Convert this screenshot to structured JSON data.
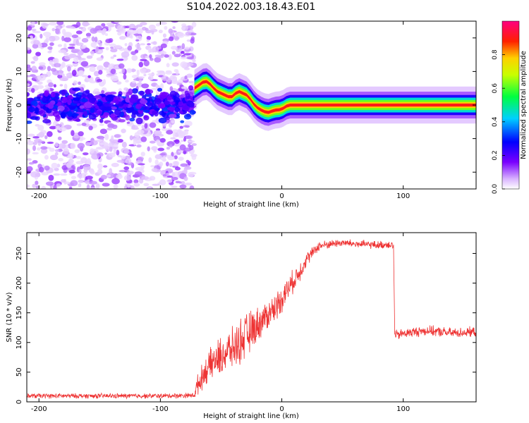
{
  "title": "S104.2022.003.18.43.E01",
  "chart_data": [
    {
      "type": "heatmap",
      "xlabel": "Height of straight line (km)",
      "ylabel": "Frequency (Hz)",
      "xlim": [
        -210,
        160
      ],
      "ylim": [
        -25,
        25
      ],
      "xticks": [
        -200,
        -100,
        0,
        100
      ],
      "xtick_labels": [
        "-200",
        "-100",
        "0",
        "100"
      ],
      "yticks": [
        -20,
        -10,
        0,
        10,
        20
      ],
      "ytick_labels": [
        "-20",
        "-10",
        "0",
        "10",
        "20"
      ],
      "noise_region_x": [
        -210,
        -72
      ],
      "trace": {
        "x": [
          -72,
          -68,
          -65,
          -62,
          -59,
          -56,
          -53,
          -50,
          -47,
          -44,
          -41,
          -38,
          -35,
          -32,
          -29,
          -26,
          -23,
          -20,
          -17,
          -14,
          -11,
          -8,
          -5,
          -2,
          1,
          4,
          7,
          10,
          13,
          160
        ],
        "y": [
          5,
          6,
          6.8,
          7,
          6.2,
          5,
          4,
          3.5,
          3,
          2.5,
          2.5,
          3.5,
          4,
          3.5,
          3,
          1.8,
          0.3,
          -0.8,
          -1.5,
          -2,
          -2.2,
          -1.8,
          -1.5,
          -1.4,
          -1,
          -0.3,
          0,
          0,
          0,
          0
        ],
        "amplitude": 0.9
      },
      "colorbar": {
        "label": "Normalized spectral amplitude",
        "range": [
          0,
          1
        ],
        "ticks": [
          0.0,
          0.2,
          0.4,
          0.6,
          0.8
        ],
        "tick_labels": [
          "0.0",
          "0.2",
          "0.4",
          "0.6",
          "0.8"
        ]
      }
    },
    {
      "type": "line",
      "xlabel": "Height of straight line (km)",
      "ylabel": "SNR (10 * v/v)",
      "xlim": [
        -210,
        160
      ],
      "ylim": [
        0,
        285
      ],
      "xticks": [
        -200,
        -100,
        0,
        100
      ],
      "xtick_labels": [
        "-200",
        "-100",
        "0",
        "100"
      ],
      "yticks": [
        0,
        50,
        100,
        150,
        200,
        250
      ],
      "ytick_labels": [
        "0",
        "50",
        "100",
        "150",
        "200",
        "250"
      ],
      "color": "#ee3333",
      "series": [
        {
          "name": "SNR",
          "x": [
            -210,
            -150,
            -100,
            -72,
            -70,
            -65,
            -60,
            -55,
            -50,
            -45,
            -40,
            -35,
            -30,
            -25,
            -20,
            -15,
            -10,
            -5,
            0,
            5,
            10,
            15,
            20,
            25,
            30,
            40,
            50,
            60,
            70,
            80,
            85,
            90,
            92,
            93,
            95,
            100,
            110,
            120,
            130,
            140,
            150,
            160
          ],
          "y": [
            10,
            10,
            10,
            11,
            25,
            45,
            60,
            70,
            75,
            85,
            90,
            100,
            110,
            120,
            130,
            140,
            150,
            160,
            175,
            190,
            205,
            220,
            240,
            250,
            262,
            266,
            268,
            266,
            265,
            264,
            265,
            265,
            262,
            115,
            112,
            115,
            118,
            120,
            118,
            116,
            117,
            118
          ],
          "noise": [
            5,
            5,
            5,
            5,
            20,
            25,
            30,
            35,
            40,
            40,
            40,
            45,
            45,
            40,
            35,
            30,
            30,
            28,
            28,
            25,
            22,
            20,
            15,
            12,
            10,
            8,
            8,
            8,
            8,
            8,
            8,
            8,
            8,
            10,
            10,
            10,
            10,
            10,
            10,
            10,
            10,
            10
          ]
        }
      ]
    }
  ]
}
